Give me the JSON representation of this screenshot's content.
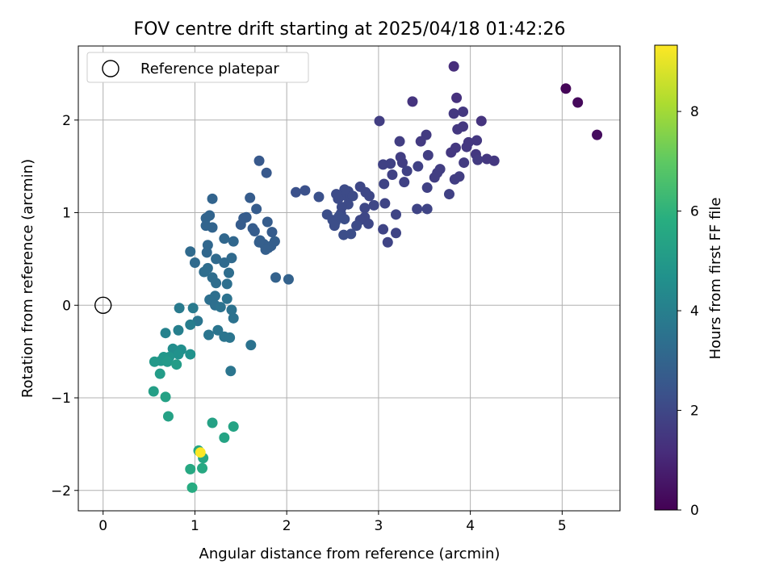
{
  "chart_data": {
    "type": "scatter",
    "title": "FOV centre drift starting at 2025/04/18 01:42:26",
    "xlabel": "Angular distance from reference (arcmin)",
    "ylabel": "Rotation from reference (arcmin)",
    "xlim": [
      -0.27,
      5.63
    ],
    "ylim": [
      -2.22,
      2.8
    ],
    "xticks": [
      0,
      1,
      2,
      3,
      4,
      5
    ],
    "yticks": [
      -2,
      -1,
      0,
      1,
      2
    ],
    "grid": true,
    "legend": {
      "placement": "top-left",
      "entries": [
        "Reference platepar"
      ]
    },
    "reference_point": {
      "x": 0,
      "y": 0,
      "label": "Reference platepar",
      "marker": "open-circle"
    },
    "colorbar": {
      "label": "Hours from first FF file",
      "colormap": "viridis",
      "range": [
        0,
        9.33
      ],
      "ticks": [
        0,
        2,
        4,
        6,
        8
      ]
    },
    "series": [
      {
        "points": [
          {
            "x": 5.04,
            "y": 2.34,
            "c": 0.1
          },
          {
            "x": 5.17,
            "y": 2.19,
            "c": 0.2
          },
          {
            "x": 5.38,
            "y": 1.84,
            "c": 0.3
          },
          {
            "x": 3.82,
            "y": 2.58,
            "c": 1.2
          },
          {
            "x": 3.85,
            "y": 2.24,
            "c": 1.3
          },
          {
            "x": 3.37,
            "y": 2.2,
            "c": 1.4
          },
          {
            "x": 3.82,
            "y": 2.07,
            "c": 1.5
          },
          {
            "x": 3.92,
            "y": 2.09,
            "c": 1.5
          },
          {
            "x": 4.12,
            "y": 1.99,
            "c": 1.4
          },
          {
            "x": 3.92,
            "y": 1.93,
            "c": 1.5
          },
          {
            "x": 3.86,
            "y": 1.9,
            "c": 1.5
          },
          {
            "x": 3.52,
            "y": 1.84,
            "c": 1.6
          },
          {
            "x": 3.46,
            "y": 1.77,
            "c": 1.6
          },
          {
            "x": 3.98,
            "y": 1.76,
            "c": 1.5
          },
          {
            "x": 4.07,
            "y": 1.78,
            "c": 1.5
          },
          {
            "x": 3.96,
            "y": 1.71,
            "c": 1.5
          },
          {
            "x": 3.84,
            "y": 1.7,
            "c": 1.5
          },
          {
            "x": 3.79,
            "y": 1.65,
            "c": 1.5
          },
          {
            "x": 4.06,
            "y": 1.63,
            "c": 1.5
          },
          {
            "x": 4.18,
            "y": 1.58,
            "c": 1.5
          },
          {
            "x": 4.26,
            "y": 1.56,
            "c": 1.5
          },
          {
            "x": 4.08,
            "y": 1.57,
            "c": 1.6
          },
          {
            "x": 3.93,
            "y": 1.54,
            "c": 1.6
          },
          {
            "x": 3.54,
            "y": 1.62,
            "c": 1.7
          },
          {
            "x": 3.23,
            "y": 1.77,
            "c": 1.7
          },
          {
            "x": 3.24,
            "y": 1.6,
            "c": 1.7
          },
          {
            "x": 3.26,
            "y": 1.54,
            "c": 1.7
          },
          {
            "x": 3.13,
            "y": 1.53,
            "c": 1.8
          },
          {
            "x": 3.05,
            "y": 1.52,
            "c": 1.8
          },
          {
            "x": 3.15,
            "y": 1.41,
            "c": 1.8
          },
          {
            "x": 3.31,
            "y": 1.45,
            "c": 1.8
          },
          {
            "x": 3.43,
            "y": 1.5,
            "c": 1.8
          },
          {
            "x": 3.67,
            "y": 1.47,
            "c": 1.7
          },
          {
            "x": 3.64,
            "y": 1.43,
            "c": 1.7
          },
          {
            "x": 3.61,
            "y": 1.38,
            "c": 1.7
          },
          {
            "x": 3.83,
            "y": 1.36,
            "c": 1.7
          },
          {
            "x": 3.88,
            "y": 1.39,
            "c": 1.7
          },
          {
            "x": 3.53,
            "y": 1.27,
            "c": 1.8
          },
          {
            "x": 3.06,
            "y": 1.31,
            "c": 1.9
          },
          {
            "x": 3.28,
            "y": 1.33,
            "c": 1.8
          },
          {
            "x": 3.77,
            "y": 1.2,
            "c": 1.8
          },
          {
            "x": 3.01,
            "y": 1.99,
            "c": 1.7
          },
          {
            "x": 3.42,
            "y": 1.04,
            "c": 1.9
          },
          {
            "x": 3.53,
            "y": 1.04,
            "c": 1.9
          },
          {
            "x": 3.19,
            "y": 0.98,
            "c": 1.9
          },
          {
            "x": 3.07,
            "y": 1.1,
            "c": 1.9
          },
          {
            "x": 3.05,
            "y": 0.82,
            "c": 1.9
          },
          {
            "x": 3.19,
            "y": 0.78,
            "c": 1.9
          },
          {
            "x": 3.1,
            "y": 0.68,
            "c": 1.9
          },
          {
            "x": 2.95,
            "y": 1.08,
            "c": 2.0
          },
          {
            "x": 2.9,
            "y": 1.18,
            "c": 2.0
          },
          {
            "x": 2.86,
            "y": 1.22,
            "c": 2.0
          },
          {
            "x": 2.8,
            "y": 1.28,
            "c": 2.0
          },
          {
            "x": 2.85,
            "y": 1.05,
            "c": 2.0
          },
          {
            "x": 2.85,
            "y": 0.95,
            "c": 2.0
          },
          {
            "x": 2.89,
            "y": 0.88,
            "c": 2.0
          },
          {
            "x": 2.8,
            "y": 0.92,
            "c": 2.0
          },
          {
            "x": 2.76,
            "y": 0.86,
            "c": 2.1
          },
          {
            "x": 2.67,
            "y": 1.23,
            "c": 2.1
          },
          {
            "x": 2.65,
            "y": 1.18,
            "c": 2.1
          },
          {
            "x": 2.58,
            "y": 1.18,
            "c": 2.1
          },
          {
            "x": 2.56,
            "y": 1.15,
            "c": 2.1
          },
          {
            "x": 2.63,
            "y": 1.25,
            "c": 2.1
          },
          {
            "x": 2.54,
            "y": 1.2,
            "c": 2.1
          },
          {
            "x": 2.72,
            "y": 1.18,
            "c": 2.1
          },
          {
            "x": 2.67,
            "y": 1.09,
            "c": 2.1
          },
          {
            "x": 2.6,
            "y": 1.06,
            "c": 2.1
          },
          {
            "x": 2.59,
            "y": 0.99,
            "c": 2.1
          },
          {
            "x": 2.57,
            "y": 0.96,
            "c": 2.2
          },
          {
            "x": 2.53,
            "y": 0.9,
            "c": 2.2
          },
          {
            "x": 2.5,
            "y": 0.92,
            "c": 2.2
          },
          {
            "x": 2.44,
            "y": 0.98,
            "c": 2.2
          },
          {
            "x": 2.52,
            "y": 0.86,
            "c": 2.2
          },
          {
            "x": 2.63,
            "y": 0.93,
            "c": 2.2
          },
          {
            "x": 2.62,
            "y": 0.76,
            "c": 2.2
          },
          {
            "x": 2.7,
            "y": 0.77,
            "c": 2.2
          },
          {
            "x": 2.35,
            "y": 1.17,
            "c": 2.3
          },
          {
            "x": 2.2,
            "y": 1.24,
            "c": 2.3
          },
          {
            "x": 2.1,
            "y": 1.22,
            "c": 2.3
          },
          {
            "x": 1.7,
            "y": 1.56,
            "c": 2.6
          },
          {
            "x": 1.78,
            "y": 1.43,
            "c": 2.6
          },
          {
            "x": 1.6,
            "y": 1.16,
            "c": 2.7
          },
          {
            "x": 1.67,
            "y": 1.04,
            "c": 2.7
          },
          {
            "x": 1.56,
            "y": 0.95,
            "c": 2.7
          },
          {
            "x": 1.53,
            "y": 0.94,
            "c": 2.7
          },
          {
            "x": 1.5,
            "y": 0.87,
            "c": 2.7
          },
          {
            "x": 1.63,
            "y": 0.83,
            "c": 2.7
          },
          {
            "x": 1.65,
            "y": 0.8,
            "c": 2.7
          },
          {
            "x": 1.79,
            "y": 0.9,
            "c": 2.7
          },
          {
            "x": 1.84,
            "y": 0.79,
            "c": 2.7
          },
          {
            "x": 1.71,
            "y": 0.7,
            "c": 2.8
          },
          {
            "x": 1.75,
            "y": 0.66,
            "c": 2.8
          },
          {
            "x": 1.8,
            "y": 0.62,
            "c": 2.8
          },
          {
            "x": 1.83,
            "y": 0.64,
            "c": 2.8
          },
          {
            "x": 1.87,
            "y": 0.69,
            "c": 2.8
          },
          {
            "x": 1.77,
            "y": 0.6,
            "c": 2.8
          },
          {
            "x": 1.7,
            "y": 0.68,
            "c": 2.8
          },
          {
            "x": 1.88,
            "y": 0.3,
            "c": 2.9
          },
          {
            "x": 2.02,
            "y": 0.28,
            "c": 2.9
          },
          {
            "x": 1.19,
            "y": 1.15,
            "c": 3.0
          },
          {
            "x": 1.12,
            "y": 0.94,
            "c": 3.0
          },
          {
            "x": 1.16,
            "y": 0.97,
            "c": 3.0
          },
          {
            "x": 1.12,
            "y": 0.86,
            "c": 3.0
          },
          {
            "x": 1.19,
            "y": 0.84,
            "c": 3.0
          },
          {
            "x": 1.32,
            "y": 0.72,
            "c": 3.1
          },
          {
            "x": 1.42,
            "y": 0.69,
            "c": 3.1
          },
          {
            "x": 1.14,
            "y": 0.65,
            "c": 3.1
          },
          {
            "x": 1.13,
            "y": 0.57,
            "c": 3.1
          },
          {
            "x": 0.95,
            "y": 0.58,
            "c": 3.2
          },
          {
            "x": 1.23,
            "y": 0.5,
            "c": 3.2
          },
          {
            "x": 1.32,
            "y": 0.46,
            "c": 3.2
          },
          {
            "x": 1.4,
            "y": 0.51,
            "c": 3.2
          },
          {
            "x": 1.0,
            "y": 0.46,
            "c": 3.2
          },
          {
            "x": 1.14,
            "y": 0.4,
            "c": 3.3
          },
          {
            "x": 1.1,
            "y": 0.36,
            "c": 3.3
          },
          {
            "x": 1.19,
            "y": 0.3,
            "c": 3.3
          },
          {
            "x": 1.23,
            "y": 0.24,
            "c": 3.3
          },
          {
            "x": 1.37,
            "y": 0.35,
            "c": 3.3
          },
          {
            "x": 1.35,
            "y": 0.23,
            "c": 3.4
          },
          {
            "x": 1.22,
            "y": 0.1,
            "c": 3.4
          },
          {
            "x": 1.16,
            "y": 0.06,
            "c": 3.4
          },
          {
            "x": 1.22,
            "y": 0.0,
            "c": 3.4
          },
          {
            "x": 1.35,
            "y": 0.07,
            "c": 3.5
          },
          {
            "x": 1.28,
            "y": -0.02,
            "c": 3.5
          },
          {
            "x": 1.4,
            "y": -0.05,
            "c": 3.5
          },
          {
            "x": 1.42,
            "y": -0.14,
            "c": 3.5
          },
          {
            "x": 1.03,
            "y": -0.17,
            "c": 3.6
          },
          {
            "x": 1.15,
            "y": -0.32,
            "c": 3.6
          },
          {
            "x": 1.25,
            "y": -0.27,
            "c": 3.6
          },
          {
            "x": 1.32,
            "y": -0.34,
            "c": 3.6
          },
          {
            "x": 1.38,
            "y": -0.35,
            "c": 3.6
          },
          {
            "x": 1.61,
            "y": -0.43,
            "c": 3.5
          },
          {
            "x": 1.39,
            "y": -0.71,
            "c": 3.6
          },
          {
            "x": 0.83,
            "y": -0.03,
            "c": 3.8
          },
          {
            "x": 0.98,
            "y": -0.03,
            "c": 3.8
          },
          {
            "x": 0.95,
            "y": -0.21,
            "c": 3.9
          },
          {
            "x": 0.82,
            "y": -0.27,
            "c": 4.0
          },
          {
            "x": 0.68,
            "y": -0.3,
            "c": 4.1
          },
          {
            "x": 0.76,
            "y": -0.47,
            "c": 4.5
          },
          {
            "x": 0.85,
            "y": -0.48,
            "c": 4.6
          },
          {
            "x": 0.82,
            "y": -0.53,
            "c": 4.7
          },
          {
            "x": 0.95,
            "y": -0.53,
            "c": 4.7
          },
          {
            "x": 0.72,
            "y": -0.56,
            "c": 4.8
          },
          {
            "x": 0.66,
            "y": -0.56,
            "c": 4.9
          },
          {
            "x": 0.63,
            "y": -0.6,
            "c": 4.9
          },
          {
            "x": 0.7,
            "y": -0.61,
            "c": 5.0
          },
          {
            "x": 0.56,
            "y": -0.61,
            "c": 5.0
          },
          {
            "x": 0.8,
            "y": -0.64,
            "c": 5.1
          },
          {
            "x": 0.62,
            "y": -0.74,
            "c": 5.1
          },
          {
            "x": 0.55,
            "y": -0.93,
            "c": 5.2
          },
          {
            "x": 0.68,
            "y": -0.99,
            "c": 5.3
          },
          {
            "x": 0.71,
            "y": -1.2,
            "c": 5.3
          },
          {
            "x": 1.19,
            "y": -1.27,
            "c": 5.3
          },
          {
            "x": 1.32,
            "y": -1.43,
            "c": 5.4
          },
          {
            "x": 1.42,
            "y": -1.31,
            "c": 5.4
          },
          {
            "x": 1.04,
            "y": -1.57,
            "c": 5.5
          },
          {
            "x": 1.09,
            "y": -1.65,
            "c": 5.5
          },
          {
            "x": 0.95,
            "y": -1.77,
            "c": 5.6
          },
          {
            "x": 1.08,
            "y": -1.76,
            "c": 5.6
          },
          {
            "x": 0.97,
            "y": -1.97,
            "c": 5.7
          },
          {
            "x": 1.06,
            "y": -1.59,
            "c": 9.3
          }
        ]
      }
    ]
  }
}
